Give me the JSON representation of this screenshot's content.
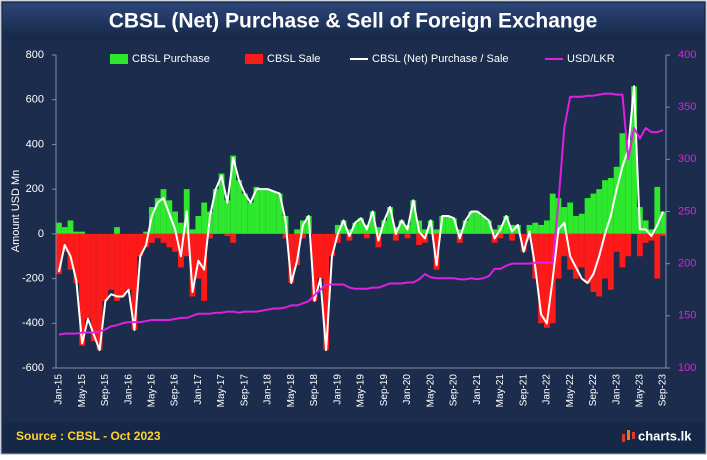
{
  "chart_data": {
    "type": "combo",
    "title": "CBSL (Net) Purchase & Sell of Foreign Exchange",
    "y_label": "Amount USD Mn",
    "source": "Source : CBSL - Oct 2023",
    "brand": "charts.lk",
    "legend": "top",
    "categories": [
      "Jan-15",
      null,
      null,
      null,
      "May-15",
      null,
      null,
      null,
      "Sep-15",
      null,
      null,
      null,
      "Jan-16",
      null,
      null,
      null,
      "May-16",
      null,
      null,
      null,
      "Sep-16",
      null,
      null,
      null,
      "Jan-17",
      null,
      null,
      null,
      "May-17",
      null,
      null,
      null,
      "Sep-17",
      null,
      null,
      null,
      "Jan-18",
      null,
      null,
      null,
      "May-18",
      null,
      null,
      null,
      "Sep-18",
      null,
      null,
      null,
      "Jan-19",
      null,
      null,
      null,
      "May-19",
      null,
      null,
      null,
      "Sep-19",
      null,
      null,
      null,
      "Jan-20",
      null,
      null,
      null,
      "May-20",
      null,
      null,
      null,
      "Sep-20",
      null,
      null,
      null,
      "Jan-21",
      null,
      null,
      null,
      "May-21",
      null,
      null,
      null,
      "Sep-21",
      null,
      null,
      null,
      "Jan-22",
      null,
      null,
      null,
      "May-22",
      null,
      null,
      null,
      "Sep-22",
      null,
      null,
      null,
      "Jan-23",
      null,
      null,
      null,
      "May-23",
      null,
      null,
      null,
      "Sep-23"
    ],
    "ylim": [
      -600,
      800
    ],
    "yticks": [
      -600,
      -400,
      -200,
      0,
      200,
      400,
      600,
      800
    ],
    "y2lim": [
      100,
      400
    ],
    "y2ticks": [
      100,
      150,
      200,
      250,
      300,
      350,
      400
    ],
    "series": [
      {
        "name": "CBSL Purchase",
        "type": "bar",
        "color": "#2ee82e",
        "values": [
          50,
          30,
          60,
          10,
          10,
          0,
          0,
          0,
          0,
          0,
          30,
          0,
          0,
          0,
          0,
          10,
          120,
          160,
          200,
          150,
          100,
          50,
          200,
          20,
          80,
          140,
          100,
          200,
          270,
          150,
          350,
          240,
          180,
          140,
          210,
          200,
          200,
          190,
          180,
          80,
          0,
          20,
          60,
          80,
          0,
          0,
          0,
          0,
          40,
          60,
          20,
          50,
          70,
          40,
          100,
          30,
          60,
          120,
          30,
          60,
          40,
          150,
          60,
          20,
          60,
          20,
          80,
          80,
          70,
          20,
          60,
          100,
          100,
          80,
          60,
          20,
          40,
          80,
          40,
          40,
          0,
          40,
          50,
          40,
          60,
          180,
          160,
          120,
          140,
          80,
          90,
          160,
          180,
          200,
          240,
          250,
          300,
          450,
          420,
          660,
          120,
          60,
          20,
          210,
          100
        ]
      },
      {
        "name": "CBSL Sale",
        "type": "bar",
        "color": "#ff1a1a",
        "values": [
          -180,
          -80,
          -160,
          -220,
          -500,
          -380,
          -480,
          -520,
          -300,
          -250,
          -300,
          -280,
          -250,
          -430,
          -100,
          -60,
          -40,
          -20,
          -40,
          -60,
          -80,
          -150,
          -100,
          -280,
          -200,
          -300,
          -20,
          0,
          0,
          -10,
          -40,
          0,
          0,
          0,
          0,
          0,
          0,
          0,
          0,
          -20,
          -220,
          -140,
          -20,
          0,
          -300,
          -200,
          -520,
          -100,
          -40,
          0,
          -30,
          0,
          0,
          -20,
          0,
          -60,
          0,
          0,
          -30,
          0,
          -20,
          0,
          -50,
          -40,
          0,
          -160,
          0,
          0,
          0,
          -40,
          0,
          0,
          0,
          0,
          0,
          -40,
          -20,
          0,
          -30,
          0,
          -80,
          -30,
          -200,
          -400,
          -420,
          -400,
          -200,
          -100,
          -160,
          -200,
          -150,
          -220,
          -260,
          -280,
          -200,
          -250,
          -80,
          -150,
          -100,
          0,
          -100,
          -40,
          -30,
          -200,
          -10
        ]
      },
      {
        "name": "CBSL (Net) Purchase / Sale",
        "type": "line",
        "color": "#ffffff",
        "values": [
          -170,
          -50,
          -100,
          -210,
          -490,
          -380,
          -450,
          -520,
          -300,
          -270,
          -280,
          -280,
          -250,
          -430,
          -100,
          -50,
          80,
          140,
          160,
          90,
          20,
          -100,
          100,
          -260,
          -120,
          -160,
          80,
          200,
          260,
          140,
          340,
          240,
          180,
          140,
          200,
          200,
          200,
          190,
          180,
          60,
          -220,
          -120,
          40,
          80,
          -300,
          -200,
          -520,
          -100,
          0,
          60,
          -10,
          50,
          70,
          20,
          100,
          -30,
          60,
          120,
          0,
          60,
          20,
          150,
          10,
          -20,
          60,
          -140,
          80,
          80,
          70,
          -20,
          60,
          100,
          100,
          80,
          60,
          -20,
          20,
          80,
          10,
          40,
          -80,
          10,
          -150,
          -360,
          -400,
          -200,
          20,
          50,
          -100,
          -150,
          -200,
          -220,
          -180,
          -100,
          0,
          80,
          200,
          300,
          380,
          660,
          20,
          20,
          -10,
          40,
          100
        ]
      },
      {
        "name": "USD/LKR",
        "type": "line",
        "axis": "y2",
        "color": "#e020e0",
        "values": [
          132,
          133,
          133,
          133,
          134,
          134,
          134,
          135,
          137,
          140,
          141,
          143,
          144,
          144,
          144,
          145,
          146,
          146,
          146,
          146,
          147,
          148,
          148,
          150,
          152,
          152,
          152,
          153,
          153,
          154,
          154,
          153,
          154,
          154,
          154,
          155,
          156,
          157,
          157,
          158,
          160,
          160,
          162,
          164,
          170,
          175,
          180,
          180,
          180,
          180,
          177,
          176,
          176,
          176,
          177,
          177,
          179,
          181,
          181,
          181,
          182,
          182,
          185,
          190,
          187,
          186,
          186,
          186,
          186,
          185,
          185,
          186,
          185,
          186,
          188,
          195,
          195,
          198,
          200,
          200,
          200,
          200,
          201,
          201,
          201,
          201,
          260,
          330,
          360,
          360,
          360,
          361,
          361,
          362,
          363,
          363,
          362,
          362,
          300,
          330,
          320,
          330,
          326,
          326,
          328
        ]
      }
    ]
  }
}
